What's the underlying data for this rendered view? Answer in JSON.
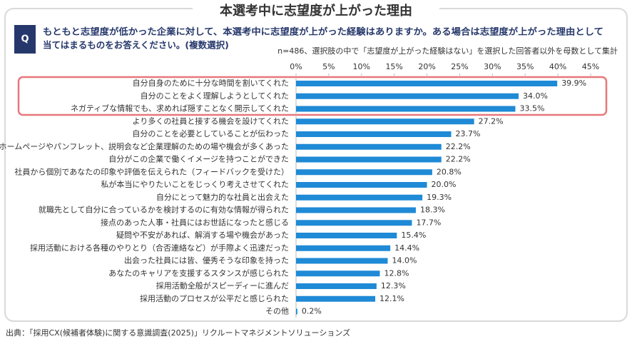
{
  "header": {
    "title": "本選考中に志望度が上がった理由"
  },
  "question": {
    "badge": "Q",
    "lines": [
      "もともと志望度が低かった企業に対して、本選考中に志望度が上がった経験はありますか。ある場合は志望度が上がった理由として",
      "当てはまるものをお答えください。(複数選択)"
    ]
  },
  "chart_data": {
    "type": "bar",
    "orientation": "horizontal",
    "note": "n=486、選択肢の中で「志望度が上がった経験はない」を選択した回答者以外を母数として集計",
    "categories": [
      "自分自身のために十分な時間を割いてくれた",
      "自分のことをよく理解しようとしてくれた",
      "ネガティブな情報でも、求めれば隠すことなく開示してくれた",
      "より多くの社員と接する機会を設けてくれた",
      "自分のことを必要としていることが伝わった",
      "ホームページやパンフレット、説明会など企業理解のための場や機会が多くあった",
      "自分がこの企業で働くイメージを持つことができた",
      "社員から個別であなたの印象や評価を伝えられた（フィードバックを受けた）",
      "私が本当にやりたいことをじっくり考えさせてくれた",
      "自分にとって魅力的な社員と出会えた",
      "就職先として自分に合っているかを検討するのに有効な情報が得られた",
      "接点のあった人事・社員にはお世話になったと感じる",
      "疑問や不安があれば、解消する場や機会があった",
      "採用活動における各種のやりとり（合否連絡など）が手際よく迅速だった",
      "出会った社員には皆、優秀そうな印象を持った",
      "あなたのキャリアを支援するスタンスが感じられた",
      "採用活動全般がスピーディーに進んだ",
      "採用活動のプロセスが公平だと感じられた",
      "その他"
    ],
    "values": [
      39.9,
      34.0,
      33.5,
      27.2,
      23.7,
      22.2,
      22.2,
      20.8,
      20.0,
      19.3,
      18.3,
      17.7,
      15.4,
      14.4,
      14.0,
      12.8,
      12.3,
      12.1,
      0.2
    ],
    "value_labels": [
      "39.9%",
      "34.0%",
      "33.5%",
      "27.2%",
      "23.7%",
      "22.2%",
      "22.2%",
      "20.8%",
      "20.0%",
      "19.3%",
      "18.3%",
      "17.7%",
      "15.4%",
      "14.4%",
      "14.0%",
      "12.8%",
      "12.3%",
      "12.1%",
      "0.2%"
    ],
    "color": "#1f8ad6",
    "xlim": [
      0,
      45
    ],
    "xticks": [
      {
        "value": 0,
        "label": "0%"
      },
      {
        "value": 5,
        "label": "5%"
      },
      {
        "value": 10,
        "label": "10%"
      },
      {
        "value": 15,
        "label": "15%"
      },
      {
        "value": 20,
        "label": "20%"
      },
      {
        "value": 25,
        "label": "25%"
      },
      {
        "value": 30,
        "label": "30%"
      },
      {
        "value": 35,
        "label": "35%"
      },
      {
        "value": 40,
        "label": "40%"
      },
      {
        "value": 45,
        "label": "45%"
      }
    ]
  },
  "source": "出典：「採用CX(候補者体験)に関する意識調査(2025)」リクルートマネジメントソリューションズ"
}
